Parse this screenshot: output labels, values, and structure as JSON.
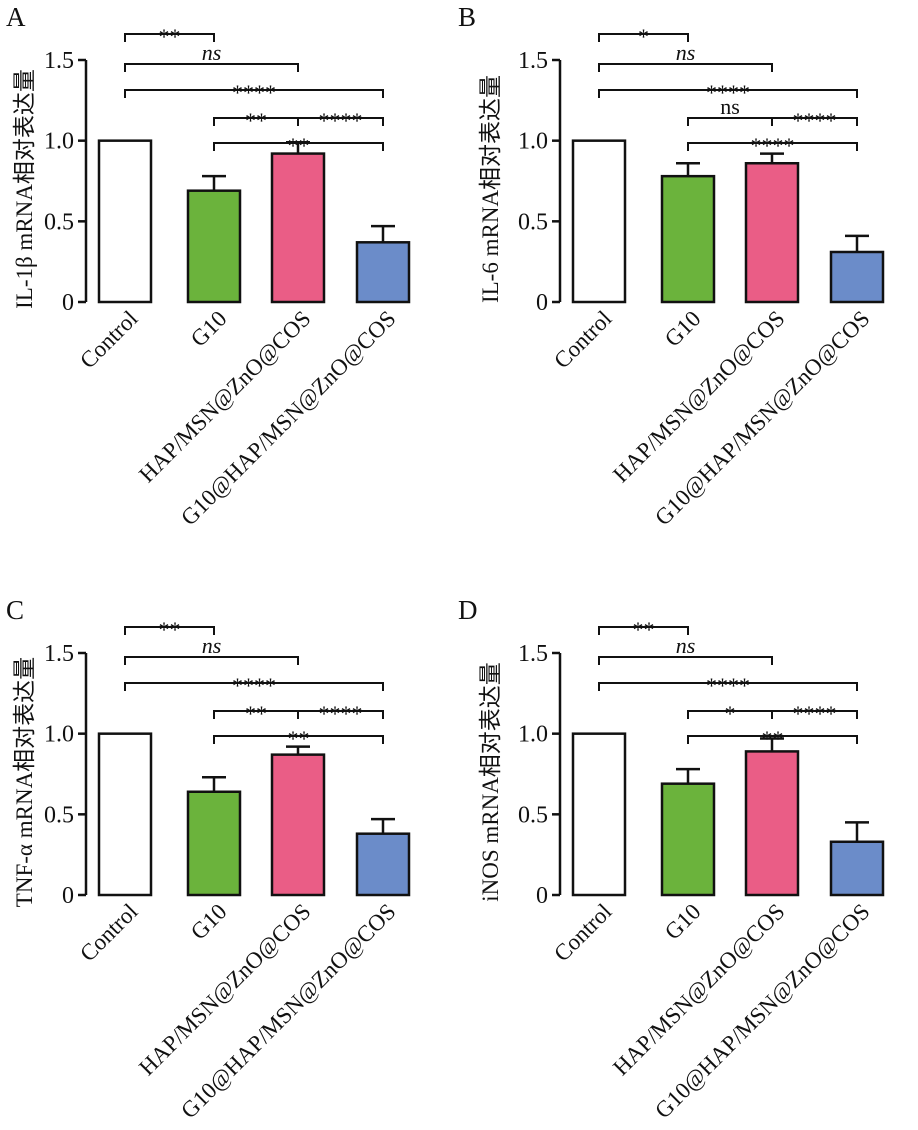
{
  "colors": {
    "axis": "#111111",
    "bar_outline": "#111111",
    "series": [
      "#ffffff",
      "#6bb33c",
      "#ea5d86",
      "#6b8cc9"
    ]
  },
  "chart_data": [
    {
      "type": "bar",
      "panel": "A",
      "ylabel": "IL-1β mRNA相对表达量",
      "ylim": [
        0,
        1.5
      ],
      "yticks": [
        "0",
        "0.5",
        "1.0",
        "1.5"
      ],
      "categories": [
        "Control",
        "G10",
        "HAP/MSN@ZnO@COS",
        "G10@HAP/MSN@ZnO@COS"
      ],
      "values": [
        1.0,
        0.69,
        0.92,
        0.37
      ],
      "errors": [
        0,
        0.09,
        0.07,
        0.1
      ],
      "significance": [
        {
          "from": 0,
          "to": 1,
          "label": "**"
        },
        {
          "from": 0,
          "to": 2,
          "label": "ns"
        },
        {
          "from": 0,
          "to": 3,
          "label": "****"
        },
        {
          "from": 1,
          "to": 2,
          "label": "**"
        },
        {
          "from": 2,
          "to": 3,
          "label": "****"
        },
        {
          "from": 1,
          "to": 3,
          "label": "**"
        }
      ]
    },
    {
      "type": "bar",
      "panel": "B",
      "ylabel": "IL-6 mRNA相对表达量",
      "ylim": [
        0,
        1.5
      ],
      "yticks": [
        "0",
        "0.5",
        "1.0",
        "1.5"
      ],
      "categories": [
        "Control",
        "G10",
        "HAP/MSN@ZnO@COS",
        "G10@HAP/MSN@ZnO@COS"
      ],
      "values": [
        1.0,
        0.78,
        0.86,
        0.31
      ],
      "errors": [
        0,
        0.08,
        0.06,
        0.1
      ],
      "significance": [
        {
          "from": 0,
          "to": 1,
          "label": "*"
        },
        {
          "from": 0,
          "to": 2,
          "label": "ns"
        },
        {
          "from": 0,
          "to": 3,
          "label": "****"
        },
        {
          "from": 1,
          "to": 2,
          "label": "ns"
        },
        {
          "from": 2,
          "to": 3,
          "label": "****"
        },
        {
          "from": 1,
          "to": 3,
          "label": "****"
        }
      ]
    },
    {
      "type": "bar",
      "panel": "C",
      "ylabel": "TNF-α mRNA相对表达量",
      "ylim": [
        0,
        1.5
      ],
      "yticks": [
        "0",
        "0.5",
        "1.0",
        "1.5"
      ],
      "categories": [
        "Control",
        "G10",
        "HAP/MSN@ZnO@COS",
        "G10@HAP/MSN@ZnO@COS"
      ],
      "values": [
        1.0,
        0.64,
        0.87,
        0.38
      ],
      "errors": [
        0,
        0.09,
        0.05,
        0.09
      ],
      "significance": [
        {
          "from": 0,
          "to": 1,
          "label": "**"
        },
        {
          "from": 0,
          "to": 2,
          "label": "ns"
        },
        {
          "from": 0,
          "to": 3,
          "label": "****"
        },
        {
          "from": 1,
          "to": 2,
          "label": "**"
        },
        {
          "from": 2,
          "to": 3,
          "label": "****"
        },
        {
          "from": 1,
          "to": 3,
          "label": "**"
        }
      ]
    },
    {
      "type": "bar",
      "panel": "D",
      "ylabel": "iNOS mRNA相对表达量",
      "ylim": [
        0,
        1.5
      ],
      "yticks": [
        "0",
        "0.5",
        "1.0",
        "1.5"
      ],
      "categories": [
        "Control",
        "G10",
        "HAP/MSN@ZnO@COS",
        "G10@HAP/MSN@ZnO@COS"
      ],
      "values": [
        1.0,
        0.69,
        0.89,
        0.33
      ],
      "errors": [
        0,
        0.09,
        0.08,
        0.12
      ],
      "significance": [
        {
          "from": 0,
          "to": 1,
          "label": "**"
        },
        {
          "from": 0,
          "to": 2,
          "label": "ns"
        },
        {
          "from": 0,
          "to": 3,
          "label": "****"
        },
        {
          "from": 1,
          "to": 2,
          "label": "*"
        },
        {
          "from": 2,
          "to": 3,
          "label": "****"
        },
        {
          "from": 1,
          "to": 3,
          "label": "**"
        }
      ]
    }
  ]
}
